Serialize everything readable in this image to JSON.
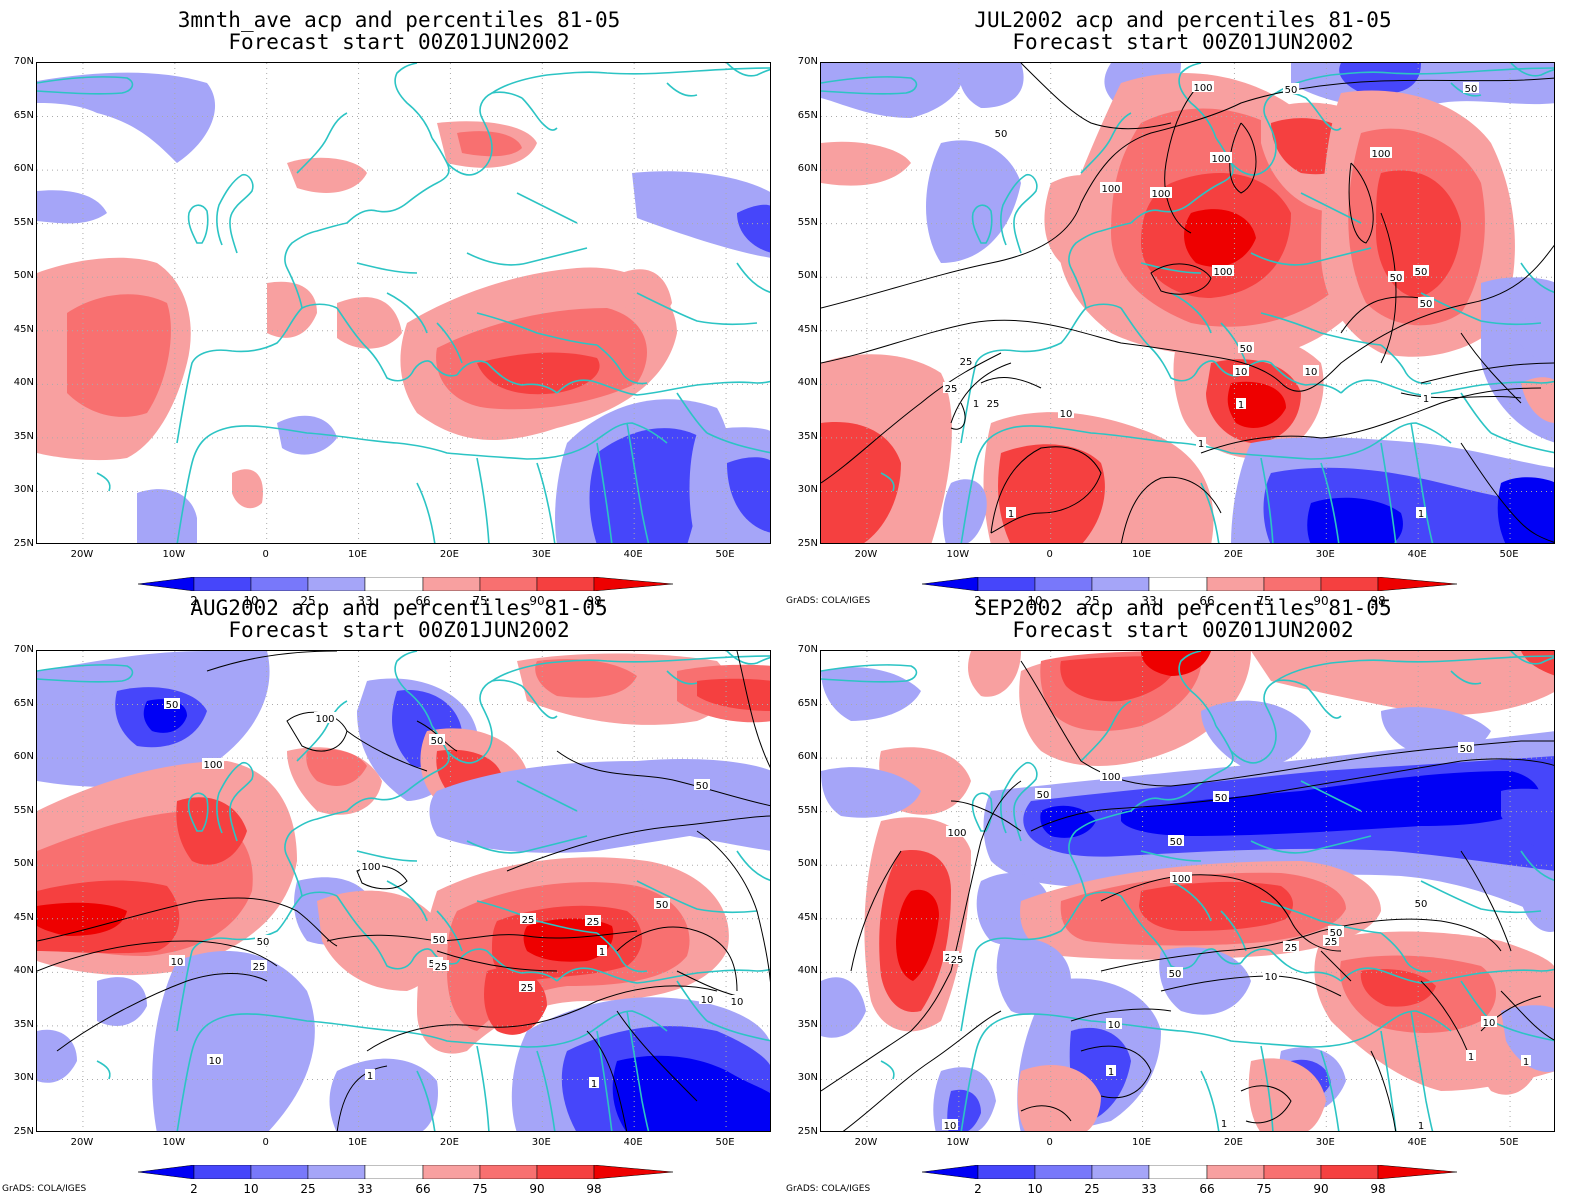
{
  "credit": "GrADS: COLA/IGES",
  "colors": {
    "p2": "#0000f5",
    "p10": "#4646fa",
    "p25": "#7878fa",
    "p33": "#a5a5f8",
    "p66": "#f8a0a0",
    "p75": "#f87070",
    "p90": "#f54040",
    "p98": "#ee0000",
    "coast": "#2cc4c4",
    "contour": "#000000",
    "grid": "#aaaaaa"
  },
  "colorbar": {
    "labels": [
      "2",
      "10",
      "25",
      "33",
      "66",
      "75",
      "90",
      "98"
    ]
  },
  "lat_labels": [
    "70N",
    "65N",
    "60N",
    "55N",
    "50N",
    "45N",
    "40N",
    "35N",
    "30N",
    "25N"
  ],
  "lon_labels": [
    "20W",
    "10W",
    "0",
    "10E",
    "20E",
    "30E",
    "40E",
    "50E"
  ],
  "panels": [
    {
      "id": "p1",
      "title_line1": "3mnth_ave acp and percentiles 81-05",
      "title_line2": "Forecast start 00Z01JUN2002",
      "show_credit": false,
      "contour_labels": []
    },
    {
      "id": "p2",
      "title_line1": "JUL2002 acp and percentiles 81-05",
      "title_line2": "Forecast start 00Z01JUN2002",
      "show_credit": true,
      "contour_labels": [
        "100",
        "50",
        "50",
        "50",
        "100",
        "100",
        "100",
        "100",
        "100",
        "50",
        "50",
        "50",
        "50",
        "25",
        "10",
        "25",
        "10",
        "25",
        "1",
        "10",
        "1",
        "1",
        "1",
        "1",
        "1"
      ]
    },
    {
      "id": "p3",
      "title_line1": "AUG2002 acp and percentiles 81-05",
      "title_line2": "Forecast start 00Z01JUN2002",
      "show_credit": true,
      "contour_labels": [
        "50",
        "50",
        "100",
        "50",
        "100",
        "50",
        "100",
        "50",
        "10",
        "25",
        "50",
        "25",
        "25",
        "50",
        "25",
        "10",
        "25",
        "10",
        "1",
        "1",
        "1",
        "10"
      ]
    },
    {
      "id": "p4",
      "title_line1": "SEP2002 acp and percentiles 81-05",
      "title_line2": "Forecast start 00Z01JUN2002",
      "show_credit": true,
      "contour_labels": [
        "50",
        "100",
        "100",
        "50",
        "50",
        "50",
        "100",
        "50",
        "25",
        "10",
        "25",
        "50",
        "25",
        "10",
        "50",
        "10",
        "1",
        "1",
        "25",
        "10",
        "1",
        "1",
        "1"
      ]
    }
  ]
}
